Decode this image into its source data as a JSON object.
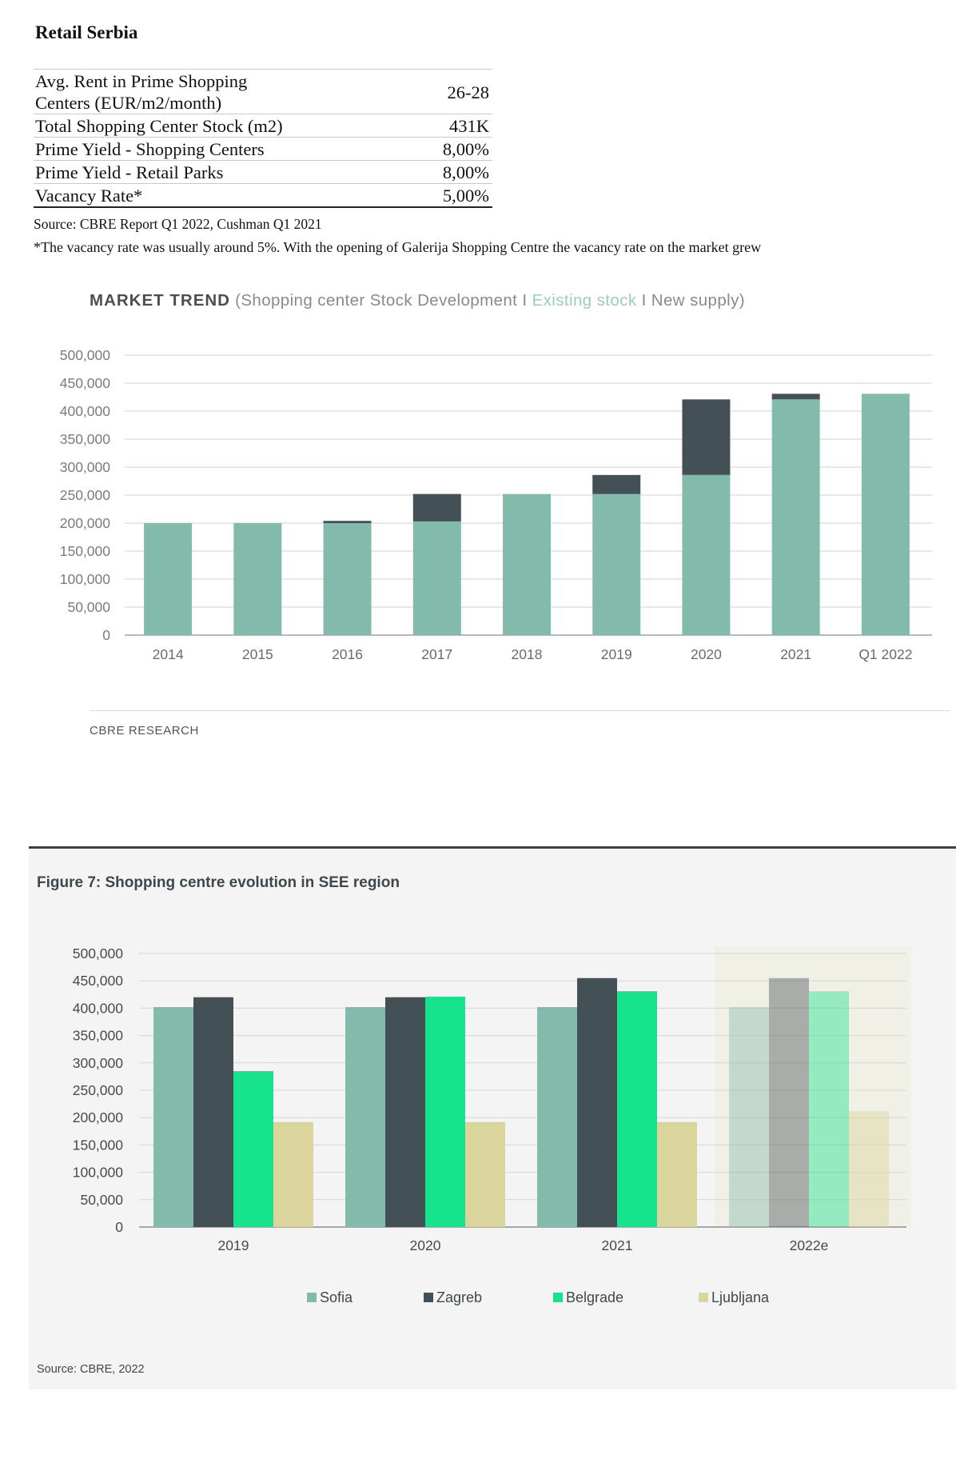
{
  "heading": "Retail Serbia",
  "table": {
    "rows": [
      {
        "label_line1": "Avg. Rent in Prime Shopping",
        "label_line2": "Centers (EUR/m2/month)",
        "value": "26-28"
      },
      {
        "label": "Total Shopping Center Stock (m2)",
        "value": "431K"
      },
      {
        "label": "Prime Yield - Shopping Centers",
        "value": "8,00%"
      },
      {
        "label": "Prime Yield - Retail Parks",
        "value": "8,00%"
      },
      {
        "label": "Vacancy Rate*",
        "value": "5,00%"
      }
    ]
  },
  "source_note": "Source: CBRE Report Q1 2022, Cushman Q1 2021",
  "vacancy_note": "*The vacancy rate was usually around 5%. With the opening of Galerija Shopping Centre the vacancy rate on the market grew",
  "chart1": {
    "title_strong": "MARKET TREND",
    "title_pre": " (Shopping center Stock Development I ",
    "title_existing": "Existing stock",
    "title_post": " I New supply)",
    "credit": "CBRE RESEARCH"
  },
  "figure7": {
    "title": "Figure 7: Shopping centre evolution in SEE region",
    "source": "Source: CBRE, 2022"
  },
  "colors": {
    "existing": "#82bbab",
    "new_supply": "#435156",
    "sofia": "#82bbab",
    "zagreb": "#435156",
    "belgrade": "#17e38c",
    "ljubljana": "#d9d59c",
    "forecast_bg": "#f1f0e6"
  },
  "chart_data": [
    {
      "type": "bar",
      "stacked": true,
      "categories": [
        "2014",
        "2015",
        "2016",
        "2017",
        "2018",
        "2019",
        "2020",
        "2021",
        "Q1 2022"
      ],
      "series": [
        {
          "name": "Existing stock",
          "values": [
            200000,
            200000,
            200000,
            203000,
            252000,
            252000,
            286000,
            421000,
            431000
          ]
        },
        {
          "name": "New supply",
          "values": [
            0,
            0,
            4000,
            49000,
            0,
            34000,
            135000,
            10000,
            0
          ]
        }
      ],
      "ylim": [
        0,
        500000
      ],
      "yticks": [
        "0",
        "50,000",
        "100,000",
        "150,000",
        "200,000",
        "250,000",
        "300,000",
        "350,000",
        "400,000",
        "450,000",
        "500,000"
      ],
      "grid": true
    },
    {
      "type": "bar",
      "categories": [
        "2019",
        "2020",
        "2021",
        "2022e"
      ],
      "series": [
        {
          "name": "Sofia",
          "values": [
            402000,
            402000,
            402000,
            402000
          ]
        },
        {
          "name": "Zagreb",
          "values": [
            420000,
            420000,
            455000,
            455000
          ]
        },
        {
          "name": "Belgrade",
          "values": [
            285000,
            421000,
            431000,
            431000
          ]
        },
        {
          "name": "Ljubljana",
          "values": [
            192000,
            192000,
            192000,
            212000
          ]
        }
      ],
      "forecast_category": "2022e",
      "ylim": [
        0,
        500000
      ],
      "yticks": [
        "0",
        "50,000",
        "100,000",
        "150,000",
        "200,000",
        "250,000",
        "300,000",
        "350,000",
        "400,000",
        "450,000",
        "500,000"
      ],
      "grid": true,
      "legend": "bottom"
    }
  ]
}
